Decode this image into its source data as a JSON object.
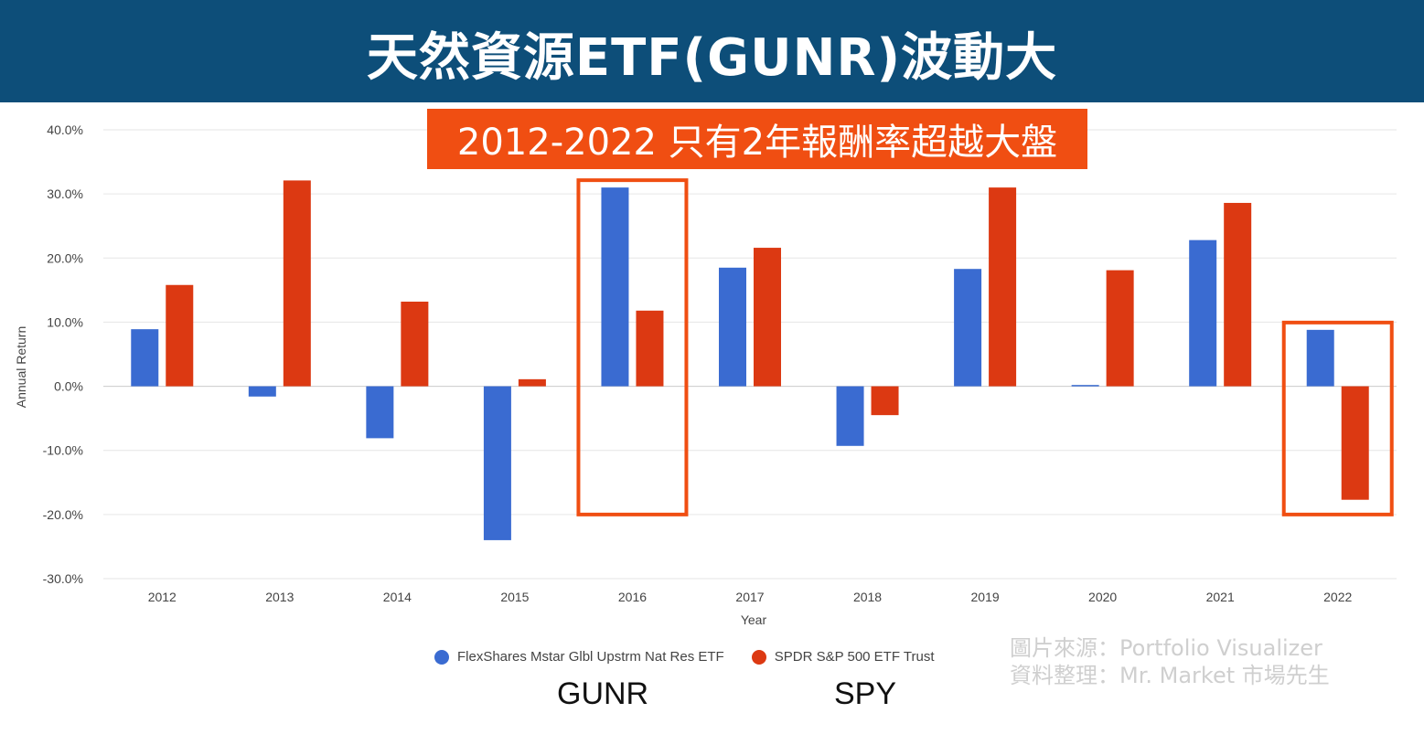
{
  "header": {
    "title": "天然資源ETF(GUNR)波動大"
  },
  "subtitle": "2012-2022 只有2年報酬率超越大盤",
  "chart_data": {
    "type": "bar",
    "categories": [
      "2012",
      "2013",
      "2014",
      "2015",
      "2016",
      "2017",
      "2018",
      "2019",
      "2020",
      "2021",
      "2022"
    ],
    "series": [
      {
        "name": "FlexShares Mstar Glbl Upstrm Nat Res ETF",
        "color": "#3a6bd1",
        "values": [
          8.9,
          -1.6,
          -8.1,
          -24.0,
          31.0,
          18.5,
          -9.3,
          18.3,
          0.2,
          22.8,
          8.8
        ]
      },
      {
        "name": "SPDR S&P 500 ETF Trust",
        "color": "#dc3912",
        "values": [
          15.8,
          32.1,
          13.2,
          1.1,
          11.8,
          21.6,
          -4.5,
          31.0,
          18.1,
          28.6,
          -17.7
        ]
      }
    ],
    "ylim": [
      -30,
      40
    ],
    "yticks": [
      40,
      30,
      20,
      10,
      0,
      -10,
      -20,
      -30
    ],
    "ytick_labels": [
      "40.0%",
      "30.0%",
      "20.0%",
      "10.0%",
      "0.0%",
      "-10.0%",
      "-20.0%",
      "-30.0%"
    ],
    "xlabel": "Year",
    "ylabel": "Annual Return",
    "grid": true,
    "legend_position": "bottom",
    "highlighted_categories": [
      "2016",
      "2022"
    ],
    "highlight_color": "#f04e12"
  },
  "legend": {
    "items": [
      {
        "label": "FlexShares Mstar Glbl Upstrm Nat Res ETF",
        "color": "#3a6bd1"
      },
      {
        "label": "SPDR S&P 500 ETF Trust",
        "color": "#dc3912"
      }
    ]
  },
  "tickers": {
    "gunr": "GUNR",
    "spy": "SPY"
  },
  "source": {
    "line1": "圖片來源：Portfolio Visualizer",
    "line2": "資料整理：Mr. Market 市場先生"
  }
}
